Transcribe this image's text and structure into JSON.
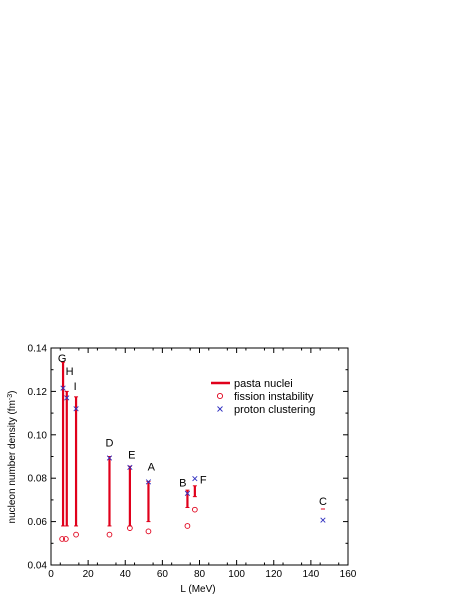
{
  "chart_data": {
    "type": "scatter",
    "xlabel": "L (MeV)",
    "ylabel_main": "nucleon number density (fm",
    "ylabel_sup": "-3",
    "ylabel_end": ")",
    "xlim": [
      0,
      160
    ],
    "ylim": [
      0.04,
      0.14
    ],
    "xticks": [
      "0",
      "20",
      "40",
      "60",
      "80",
      "100",
      "120",
      "140",
      "160"
    ],
    "yticks": [
      "0.04",
      "0.06",
      "0.08",
      "0.10",
      "0.12",
      "0.14"
    ],
    "legend_position": "top-right",
    "colors": {
      "pasta": "#e0001b",
      "fission": "#e0001b",
      "proton": "#3030c0"
    },
    "series": [
      {
        "name": "pasta nuclei",
        "kind": "range",
        "points": [
          {
            "x": 6.5,
            "low": 0.058,
            "high": 0.1335
          },
          {
            "x": 8.5,
            "low": 0.058,
            "high": 0.12
          },
          {
            "x": 13.5,
            "low": 0.058,
            "high": 0.1175
          },
          {
            "x": 31.5,
            "low": 0.058,
            "high": 0.09
          },
          {
            "x": 42.5,
            "low": 0.058,
            "high": 0.0855
          },
          {
            "x": 52.5,
            "low": 0.06,
            "high": 0.0785
          },
          {
            "x": 73.5,
            "low": 0.0665,
            "high": 0.0745
          },
          {
            "x": 77.5,
            "low": 0.0715,
            "high": 0.0765
          },
          {
            "x": 146.5,
            "low": 0.0658,
            "high": 0.0658
          }
        ]
      },
      {
        "name": "fission instability",
        "kind": "circle",
        "points": [
          {
            "x": 6.0,
            "y": 0.052
          },
          {
            "x": 8.0,
            "y": 0.052
          },
          {
            "x": 13.5,
            "y": 0.054
          },
          {
            "x": 31.5,
            "y": 0.054
          },
          {
            "x": 42.5,
            "y": 0.057
          },
          {
            "x": 52.5,
            "y": 0.0555
          },
          {
            "x": 73.5,
            "y": 0.058
          },
          {
            "x": 77.5,
            "y": 0.0655
          }
        ]
      },
      {
        "name": "proton clustering",
        "kind": "cross",
        "points": [
          {
            "x": 6.5,
            "y": 0.1215
          },
          {
            "x": 8.5,
            "y": 0.117
          },
          {
            "x": 13.5,
            "y": 0.112
          },
          {
            "x": 31.5,
            "y": 0.0893
          },
          {
            "x": 42.5,
            "y": 0.085
          },
          {
            "x": 52.5,
            "y": 0.0783
          },
          {
            "x": 73.5,
            "y": 0.073
          },
          {
            "x": 77.5,
            "y": 0.0798
          },
          {
            "x": 146.5,
            "y": 0.0607
          }
        ]
      }
    ],
    "annotations": [
      {
        "text": "G",
        "x": 6.0,
        "y": 0.1355
      },
      {
        "text": "H",
        "x": 10.0,
        "y": 0.1295
      },
      {
        "text": "I",
        "x": 13.0,
        "y": 0.1225
      },
      {
        "text": "D",
        "x": 31.5,
        "y": 0.0965
      },
      {
        "text": "E",
        "x": 43.5,
        "y": 0.091
      },
      {
        "text": "A",
        "x": 54.0,
        "y": 0.0855
      },
      {
        "text": "B",
        "x": 71.0,
        "y": 0.078
      },
      {
        "text": "F",
        "x": 82.0,
        "y": 0.0795
      },
      {
        "text": "C",
        "x": 146.5,
        "y": 0.0695
      }
    ]
  }
}
